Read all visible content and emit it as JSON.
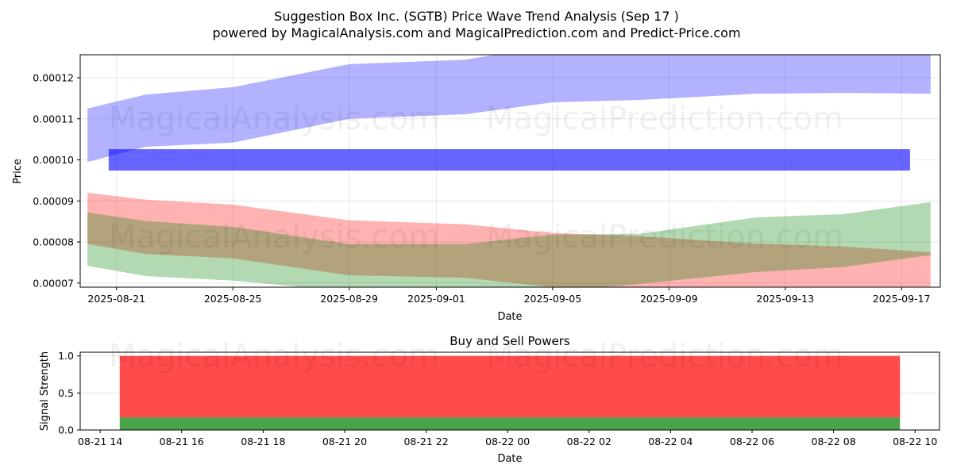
{
  "title": "Suggestion Box Inc. (SGTB) Price Wave Trend Analysis (Sep 17 )",
  "subtitle": "powered by MagicalAnalysis.com and MagicalPrediction.com and Predict-Price.com",
  "watermarks": [
    "MagicalAnalysis.com",
    "MagicalPrediction.com"
  ],
  "colors": {
    "blue_band": "rgba(0,0,255,0.3)",
    "blue_bar": "rgba(0,0,255,0.6)",
    "red_band": "rgba(255,0,0,0.3)",
    "green_band": "rgba(0,128,0,0.3)",
    "buy": "#4aa24a",
    "sell": "#ff4b4b"
  },
  "chart_data": [
    {
      "type": "area",
      "title": "",
      "xlabel": "Date",
      "ylabel": "Price",
      "ylim": [
        6.9e-05,
        0.0001256
      ],
      "xlim": [
        "2025-08-19T18:00",
        "2025-09-18T08:00"
      ],
      "grid": true,
      "x_ticks": [
        "2025-08-21",
        "2025-08-25",
        "2025-08-29",
        "2025-09-01",
        "2025-09-05",
        "2025-09-09",
        "2025-09-13",
        "2025-09-17"
      ],
      "y_ticks": [
        7e-05,
        8e-05,
        9e-05,
        0.0001,
        0.00011,
        0.00012
      ],
      "y_tick_labels": [
        "0.00007",
        "0.00008",
        "0.00009",
        "0.00010",
        "0.00011",
        "0.00012"
      ],
      "x": [
        "2025-08-20",
        "2025-08-22",
        "2025-08-25",
        "2025-08-29",
        "2025-09-02",
        "2025-09-05",
        "2025-09-08",
        "2025-09-12",
        "2025-09-15",
        "2025-09-18"
      ],
      "bands": [
        {
          "name": "blue-band",
          "color": "blue_band",
          "upper": [
            0.0001125,
            0.0001159,
            0.0001177,
            0.0001233,
            0.0001244,
            0.000128,
            0.00013,
            0.00013,
            0.00013,
            0.00013
          ],
          "lower": [
            9.95e-05,
            0.0001032,
            0.0001042,
            0.00011,
            0.0001111,
            0.000114,
            0.0001146,
            0.0001161,
            0.0001163,
            0.0001161
          ]
        },
        {
          "name": "red-band",
          "color": "red_band",
          "upper": [
            9.2e-05,
            9.03e-05,
            8.91e-05,
            8.53e-05,
            8.43e-05,
            8.22e-05,
            8.14e-05,
            7.96e-05,
            7.89e-05,
            7.75e-05
          ],
          "lower": [
            7.95e-05,
            7.71e-05,
            7.6e-05,
            7.19e-05,
            7.13e-05,
            6.9e-05,
            6.85e-05,
            6.8e-05,
            6.75e-05,
            6.7e-05
          ]
        },
        {
          "name": "green-band",
          "color": "green_band",
          "upper": [
            8.72e-05,
            8.51e-05,
            8.37e-05,
            7.95e-05,
            7.95e-05,
            8.18e-05,
            8.2e-05,
            8.6e-05,
            8.68e-05,
            8.97e-05
          ],
          "lower": [
            7.42e-05,
            7.17e-05,
            7.06e-05,
            6.8e-05,
            6.75e-05,
            6.8e-05,
            6.98e-05,
            7.27e-05,
            7.39e-05,
            7.68e-05
          ]
        }
      ],
      "bar": {
        "name": "blue-bar",
        "start": "2025-08-20T17:30",
        "end": "2025-09-17T07:00",
        "low": 9.74e-05,
        "high": 0.0001026
      }
    },
    {
      "type": "bar",
      "title": "Buy and Sell Powers",
      "xlabel": "Date",
      "ylabel": "Signal Strength",
      "ylim": [
        0,
        1.05
      ],
      "xlim": [
        "2025-08-21T13:31",
        "2025-08-22T10:36"
      ],
      "grid": true,
      "x_ticks": [
        "08-21 14",
        "08-21 16",
        "08-21 18",
        "08-21 20",
        "08-21 22",
        "08-22 00",
        "08-22 02",
        "08-22 04",
        "08-22 06",
        "08-22 08",
        "08-22 10"
      ],
      "x_tick_hours": [
        14,
        16,
        18,
        20,
        22,
        24,
        26,
        28,
        30,
        32,
        34
      ],
      "y_ticks": [
        0.0,
        0.5,
        1.0
      ],
      "y_tick_labels": [
        "0.0",
        "0.5",
        "1.0"
      ],
      "bar_start_hour": 14.48,
      "bar_end_hour": 33.63,
      "series": [
        {
          "name": "Buy",
          "value": 0.17,
          "color": "buy"
        },
        {
          "name": "Sell",
          "value": 0.83,
          "color": "sell"
        }
      ]
    }
  ]
}
